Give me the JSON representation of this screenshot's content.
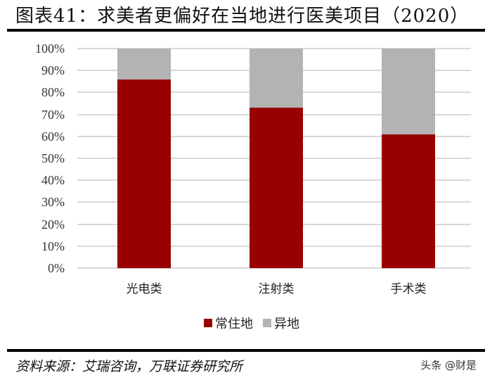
{
  "header": {
    "title": "图表41：求美者更偏好在当地进行医美项目（2020）"
  },
  "footer": {
    "source": "资料来源：艾瑞咨询，万联证券研究所",
    "watermark": "头条 @财是"
  },
  "colors": {
    "local": "#990000",
    "nonlocal": "#b3b3b3",
    "grid": "#d9d9d9"
  },
  "legend": [
    {
      "label": "常住地",
      "color": "#990000"
    },
    {
      "label": "异地",
      "color": "#b3b3b3"
    }
  ],
  "yticks": [
    "100%",
    "90%",
    "80%",
    "70%",
    "60%",
    "50%",
    "40%",
    "30%",
    "20%",
    "10%",
    "0%"
  ],
  "chart_data": {
    "type": "bar",
    "stacked": true,
    "title": "图表41：求美者更偏好在当地进行医美项目（2020）",
    "xlabel": "",
    "ylabel": "",
    "ylim": [
      0,
      100
    ],
    "grid": true,
    "legend_position": "bottom",
    "categories": [
      "光电类",
      "注射类",
      "手术类"
    ],
    "series": [
      {
        "name": "常住地",
        "values": [
          86,
          73,
          61
        ]
      },
      {
        "name": "异地",
        "values": [
          14,
          27,
          39
        ]
      }
    ]
  }
}
